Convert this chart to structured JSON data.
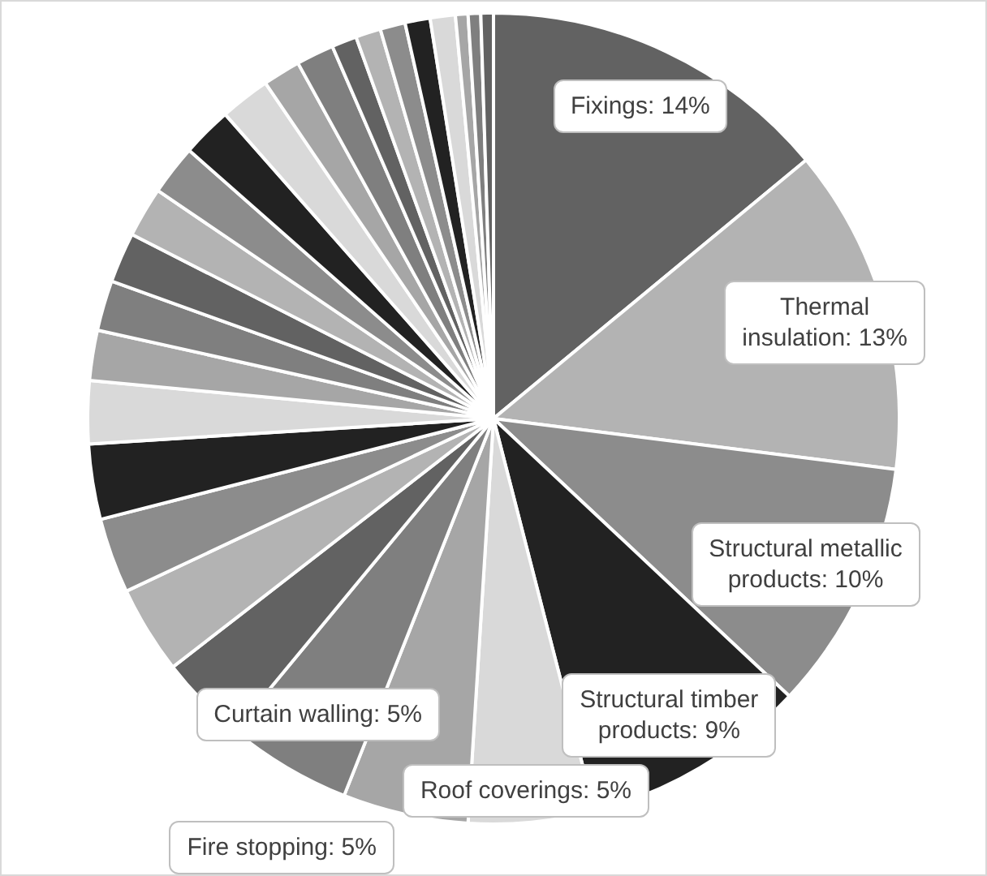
{
  "chart_data": {
    "type": "pie",
    "categories": [
      "Fixings",
      "Thermal insulation",
      "Structural metallic products",
      "Structural timber products",
      "Roof coverings",
      "Fire stopping",
      "Curtain walling",
      null,
      null,
      null,
      null,
      null,
      null,
      null,
      null,
      null,
      null,
      null,
      null,
      null,
      null,
      null,
      null,
      null,
      null,
      null,
      null,
      null,
      null
    ],
    "values": [
      14,
      13,
      10,
      9,
      5,
      5,
      5,
      3.5,
      3.5,
      3,
      3,
      2.5,
      2,
      2,
      2,
      2,
      2,
      2,
      2,
      1.5,
      1.5,
      1,
      1,
      1,
      1,
      1,
      0.5,
      0.5,
      0.5
    ],
    "value_labels": [
      "14%",
      "13%",
      "10%",
      "9%",
      "5%",
      "5%",
      "5%",
      null,
      null,
      null,
      null,
      null,
      null,
      null,
      null,
      null,
      null,
      null,
      null,
      null,
      null,
      null,
      null,
      null,
      null,
      null,
      null,
      null,
      null
    ],
    "colors": [
      "#626262",
      "#b3b3b3",
      "#8c8c8c",
      "#222222",
      "#d9d9d9",
      "#a6a6a6",
      "#7f7f7f",
      "#626262",
      "#b3b3b3",
      "#8c8c8c",
      "#222222",
      "#d9d9d9",
      "#a6a6a6",
      "#7f7f7f",
      "#626262",
      "#b3b3b3",
      "#8c8c8c",
      "#222222",
      "#d9d9d9",
      "#a6a6a6",
      "#7f7f7f",
      "#626262",
      "#b3b3b3",
      "#8c8c8c",
      "#222222",
      "#d9d9d9",
      "#a6a6a6",
      "#7f7f7f",
      "#626262"
    ],
    "legend": false
  }
}
